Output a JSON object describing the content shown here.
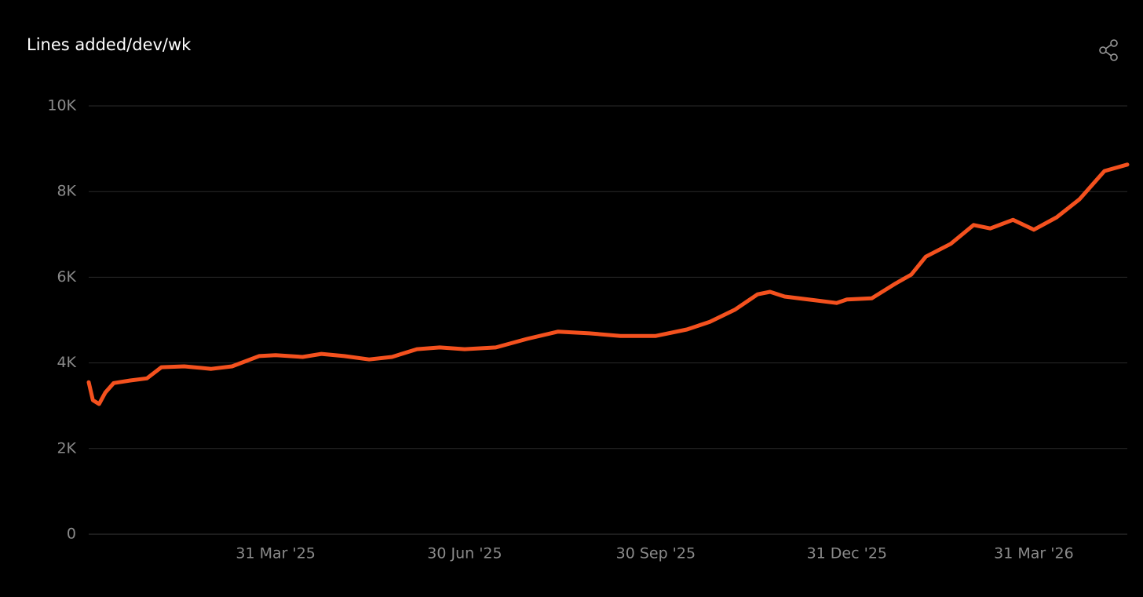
{
  "chart_data": {
    "type": "line",
    "title": "Lines added/dev/wk",
    "color": "#f4511e",
    "grid": true,
    "x": [
      "2024-12-31",
      "2025-01-02",
      "2025-01-05",
      "2025-01-08",
      "2025-01-12",
      "2025-01-20",
      "2025-01-28",
      "2025-02-04",
      "2025-02-15",
      "2025-02-28",
      "2025-03-10",
      "2025-03-23",
      "2025-03-31",
      "2025-04-13",
      "2025-04-22",
      "2025-05-03",
      "2025-05-15",
      "2025-05-26",
      "2025-06-07",
      "2025-06-18",
      "2025-06-30",
      "2025-07-15",
      "2025-07-30",
      "2025-08-14",
      "2025-08-29",
      "2025-09-13",
      "2025-09-30",
      "2025-10-15",
      "2025-10-26",
      "2025-11-07",
      "2025-11-18",
      "2025-11-24",
      "2025-12-01",
      "2025-12-16",
      "2025-12-26",
      "2025-12-31",
      "2026-01-12",
      "2026-01-23",
      "2026-01-31",
      "2026-02-07",
      "2026-02-19",
      "2026-03-02",
      "2026-03-10",
      "2026-03-21",
      "2026-03-31",
      "2026-04-11",
      "2026-04-22",
      "2026-05-04",
      "2026-05-15"
    ],
    "values": [
      3550,
      3130,
      3040,
      3310,
      3530,
      3590,
      3640,
      3900,
      3920,
      3860,
      3920,
      4160,
      4180,
      4140,
      4210,
      4160,
      4080,
      4140,
      4320,
      4360,
      4320,
      4360,
      4560,
      4730,
      4690,
      4630,
      4630,
      4780,
      4960,
      5240,
      5600,
      5660,
      5550,
      5460,
      5400,
      5480,
      5510,
      5840,
      6060,
      6480,
      6780,
      7220,
      7140,
      7340,
      7110,
      7400,
      7820,
      8480,
      8630
    ],
    "xlim": [
      "2024-12-31",
      "2026-05-15"
    ],
    "xticks": [
      {
        "value": "2025-03-31",
        "label": "31 Mar '25"
      },
      {
        "value": "2025-06-30",
        "label": "30 Jun '25"
      },
      {
        "value": "2025-09-30",
        "label": "30 Sep '25"
      },
      {
        "value": "2025-12-31",
        "label": "31 Dec '25"
      },
      {
        "value": "2026-03-31",
        "label": "31 Mar '26"
      }
    ],
    "ylim": [
      0,
      10000
    ],
    "yticks": [
      0,
      {
        "value": 2000,
        "label": "2K"
      },
      {
        "value": 4000,
        "label": "4K"
      },
      {
        "value": 6000,
        "label": "6K"
      },
      {
        "value": 8000,
        "label": "8K"
      },
      {
        "value": 10000,
        "label": "10K"
      }
    ]
  }
}
